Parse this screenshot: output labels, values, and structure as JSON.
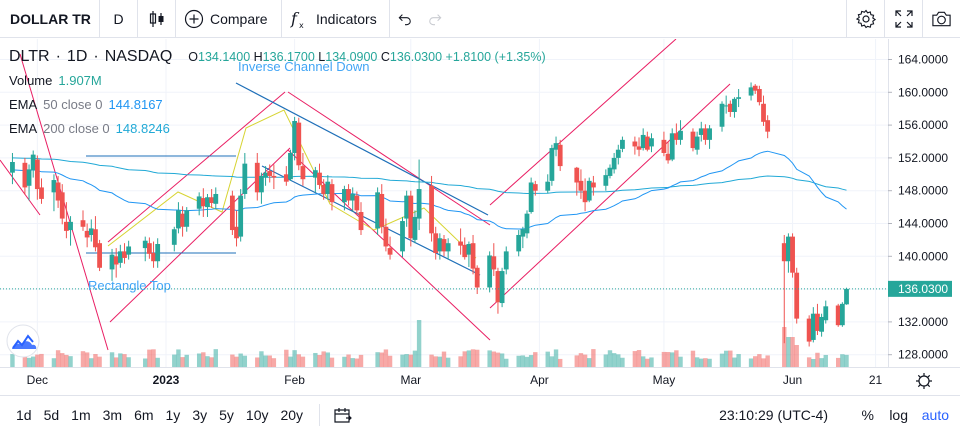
{
  "toolbar": {
    "symbol": "DOLLAR TR",
    "interval": "D",
    "compare_label": "Compare",
    "indicators_label": "Indicators",
    "chart_type_icon": "candles-icon",
    "indicators_icon": "fx-icon"
  },
  "legend": {
    "ticker": "DLTR",
    "interval": "1D",
    "exchange": "NASDAQ",
    "ohlc": {
      "o_label": "O",
      "o": "134.1400",
      "h_label": "H",
      "h": "136.1700",
      "l_label": "L",
      "l": "134.0900",
      "c_label": "C",
      "c": "136.0300",
      "change": "+1.8100 (+1.35%)"
    },
    "volume_label": "Volume",
    "volume_value": "1.907M",
    "ema50_label": "EMA",
    "ema50_params": "50 close 0",
    "ema50_value": "144.8167",
    "ema200_label": "EMA",
    "ema200_params": "200 close 0",
    "ema200_value": "148.8246"
  },
  "annotations": {
    "inverse_channel": "Inverse Channel Down",
    "rectangle_top": "Rectangle Top"
  },
  "price_axis": {
    "ticks": [
      "164.0000",
      "160.0000",
      "156.0000",
      "152.0000",
      "148.0000",
      "144.0000",
      "140.0000",
      "136.0000",
      "132.0000",
      "128.0000"
    ],
    "last_price": "136.0300"
  },
  "time_axis": {
    "labels": [
      "Dec",
      "2023",
      "Feb",
      "Mar",
      "Apr",
      "May",
      "Jun",
      "21"
    ]
  },
  "bottom": {
    "ranges": [
      "1d",
      "5d",
      "1m",
      "3m",
      "6m",
      "1y",
      "3y",
      "5y",
      "10y",
      "20y"
    ],
    "clock": "23:10:29 (UTC-4)",
    "percent": "%",
    "log": "log",
    "auto": "auto"
  },
  "colors": {
    "up": "#26a69a",
    "down": "#ef5350",
    "ema50": "#2196f3",
    "ema200": "#21a9d6",
    "drawing_pink": "#e91e63",
    "drawing_blue": "#1e6fb8",
    "drawing_yellow": "#d7d433",
    "accent": "#2962ff"
  },
  "chart_data": {
    "type": "candlestick",
    "ylim": [
      126.5,
      166.5
    ],
    "y_ticks": [
      164,
      160,
      156,
      152,
      148,
      144,
      140,
      136,
      132,
      128
    ],
    "last_price": 136.03,
    "candles": [
      {
        "date": "2022-11-25",
        "o": 150.2,
        "h": 152.6,
        "l": 148.8,
        "c": 151.5
      },
      {
        "date": "2022-11-28",
        "o": 151.4,
        "h": 152.0,
        "l": 147.5,
        "c": 148.4
      },
      {
        "date": "2022-11-29",
        "o": 148.6,
        "h": 151.2,
        "l": 146.8,
        "c": 150.6
      },
      {
        "date": "2022-11-30",
        "o": 150.5,
        "h": 152.9,
        "l": 149.6,
        "c": 152.4
      },
      {
        "date": "2022-12-01",
        "o": 151.8,
        "h": 152.3,
        "l": 146.9,
        "c": 148.2
      },
      {
        "date": "2022-12-02",
        "o": 148.4,
        "h": 149.5,
        "l": 146.4,
        "c": 147.0
      },
      {
        "date": "2022-12-05",
        "o": 147.8,
        "h": 150.0,
        "l": 145.5,
        "c": 149.3
      },
      {
        "date": "2022-12-06",
        "o": 149.0,
        "h": 149.8,
        "l": 145.9,
        "c": 146.8
      },
      {
        "date": "2022-12-07",
        "o": 147.8,
        "h": 148.8,
        "l": 143.9,
        "c": 144.6
      },
      {
        "date": "2022-12-08",
        "o": 144.2,
        "h": 146.6,
        "l": 142.2,
        "c": 143.1
      },
      {
        "date": "2022-12-09",
        "o": 143.2,
        "h": 144.9,
        "l": 141.3,
        "c": 144.2
      },
      {
        "date": "2022-12-12",
        "o": 144.4,
        "h": 145.6,
        "l": 143.1,
        "c": 143.6
      },
      {
        "date": "2022-12-13",
        "o": 143.1,
        "h": 144.0,
        "l": 141.1,
        "c": 142.3
      },
      {
        "date": "2022-12-14",
        "o": 142.6,
        "h": 144.5,
        "l": 141.8,
        "c": 143.4
      },
      {
        "date": "2022-12-15",
        "o": 143.3,
        "h": 144.9,
        "l": 140.6,
        "c": 141.1
      },
      {
        "date": "2022-12-16",
        "o": 141.6,
        "h": 142.0,
        "l": 138.2,
        "c": 138.6
      },
      {
        "date": "2022-12-19",
        "o": 138.4,
        "h": 140.9,
        "l": 137.0,
        "c": 140.2
      },
      {
        "date": "2022-12-20",
        "o": 140.0,
        "h": 141.0,
        "l": 137.4,
        "c": 139.0
      },
      {
        "date": "2022-12-21",
        "o": 139.2,
        "h": 141.4,
        "l": 138.6,
        "c": 140.6
      },
      {
        "date": "2022-12-22",
        "o": 140.6,
        "h": 141.6,
        "l": 139.1,
        "c": 139.8
      },
      {
        "date": "2022-12-23",
        "o": 140.2,
        "h": 141.9,
        "l": 139.6,
        "c": 141.2
      },
      {
        "date": "2022-12-27",
        "o": 141.0,
        "h": 142.4,
        "l": 139.4,
        "c": 141.9
      },
      {
        "date": "2022-12-28",
        "o": 141.6,
        "h": 142.3,
        "l": 139.7,
        "c": 140.3
      },
      {
        "date": "2022-12-29",
        "o": 140.4,
        "h": 141.8,
        "l": 138.6,
        "c": 139.4
      },
      {
        "date": "2022-12-30",
        "o": 139.4,
        "h": 142.2,
        "l": 138.6,
        "c": 141.5
      },
      {
        "date": "2023-01-03",
        "o": 141.4,
        "h": 143.6,
        "l": 140.6,
        "c": 143.3
      },
      {
        "date": "2023-01-04",
        "o": 143.4,
        "h": 146.6,
        "l": 142.8,
        "c": 145.6
      },
      {
        "date": "2023-01-05",
        "o": 145.2,
        "h": 146.1,
        "l": 142.4,
        "c": 143.6
      },
      {
        "date": "2023-01-06",
        "o": 143.6,
        "h": 146.0,
        "l": 143.0,
        "c": 145.6
      },
      {
        "date": "2023-01-09",
        "o": 145.8,
        "h": 147.8,
        "l": 145.0,
        "c": 147.3
      },
      {
        "date": "2023-01-10",
        "o": 147.1,
        "h": 148.3,
        "l": 144.8,
        "c": 146.1
      },
      {
        "date": "2023-01-11",
        "o": 146.0,
        "h": 147.6,
        "l": 144.8,
        "c": 147.2
      },
      {
        "date": "2023-01-12",
        "o": 147.2,
        "h": 148.2,
        "l": 145.9,
        "c": 146.5
      },
      {
        "date": "2023-01-13",
        "o": 146.4,
        "h": 148.4,
        "l": 145.8,
        "c": 147.6
      },
      {
        "date": "2023-01-17",
        "o": 147.4,
        "h": 148.0,
        "l": 142.6,
        "c": 143.2
      },
      {
        "date": "2023-01-18",
        "o": 143.6,
        "h": 145.6,
        "l": 141.2,
        "c": 142.2
      },
      {
        "date": "2023-01-19",
        "o": 142.4,
        "h": 148.2,
        "l": 141.8,
        "c": 147.4
      },
      {
        "date": "2023-01-20",
        "o": 147.6,
        "h": 152.6,
        "l": 147.0,
        "c": 151.3
      },
      {
        "date": "2023-01-23",
        "o": 151.4,
        "h": 152.6,
        "l": 146.8,
        "c": 147.8
      },
      {
        "date": "2023-01-24",
        "o": 147.8,
        "h": 150.2,
        "l": 146.4,
        "c": 149.8
      },
      {
        "date": "2023-01-25",
        "o": 149.6,
        "h": 151.0,
        "l": 148.6,
        "c": 150.2
      },
      {
        "date": "2023-01-26",
        "o": 150.4,
        "h": 151.2,
        "l": 149.0,
        "c": 149.8
      },
      {
        "date": "2023-01-27",
        "o": 149.8,
        "h": 151.2,
        "l": 148.2,
        "c": 149.6
      },
      {
        "date": "2023-01-30",
        "o": 150.0,
        "h": 151.0,
        "l": 148.6,
        "c": 149.1
      },
      {
        "date": "2023-01-31",
        "o": 149.4,
        "h": 153.0,
        "l": 149.2,
        "c": 152.6
      },
      {
        "date": "2023-02-01",
        "o": 152.6,
        "h": 157.0,
        "l": 151.7,
        "c": 156.5
      },
      {
        "date": "2023-02-02",
        "o": 156.3,
        "h": 156.9,
        "l": 150.5,
        "c": 151.1
      },
      {
        "date": "2023-02-03",
        "o": 151.0,
        "h": 152.6,
        "l": 148.6,
        "c": 149.4
      },
      {
        "date": "2023-02-06",
        "o": 149.6,
        "h": 150.9,
        "l": 147.8,
        "c": 150.5
      },
      {
        "date": "2023-02-07",
        "o": 150.2,
        "h": 151.3,
        "l": 148.2,
        "c": 148.7
      },
      {
        "date": "2023-02-08",
        "o": 148.7,
        "h": 149.4,
        "l": 146.9,
        "c": 147.6
      },
      {
        "date": "2023-02-09",
        "o": 147.6,
        "h": 149.9,
        "l": 146.9,
        "c": 149.1
      },
      {
        "date": "2023-02-10",
        "o": 148.8,
        "h": 149.4,
        "l": 145.6,
        "c": 146.6
      },
      {
        "date": "2023-02-13",
        "o": 146.6,
        "h": 148.6,
        "l": 145.6,
        "c": 148.2
      },
      {
        "date": "2023-02-14",
        "o": 148.2,
        "h": 148.8,
        "l": 146.2,
        "c": 146.8
      },
      {
        "date": "2023-02-15",
        "o": 146.8,
        "h": 148.4,
        "l": 145.4,
        "c": 147.6
      },
      {
        "date": "2023-02-16",
        "o": 147.4,
        "h": 147.9,
        "l": 145.0,
        "c": 145.6
      },
      {
        "date": "2023-02-17",
        "o": 145.4,
        "h": 146.6,
        "l": 142.6,
        "c": 143.2
      },
      {
        "date": "2023-02-21",
        "o": 143.4,
        "h": 148.4,
        "l": 142.6,
        "c": 147.8
      },
      {
        "date": "2023-02-22",
        "o": 147.6,
        "h": 148.8,
        "l": 142.8,
        "c": 143.6
      },
      {
        "date": "2023-02-23",
        "o": 143.6,
        "h": 144.6,
        "l": 140.6,
        "c": 141.2
      },
      {
        "date": "2023-02-24",
        "o": 141.0,
        "h": 142.4,
        "l": 139.6,
        "c": 140.2
      },
      {
        "date": "2023-02-27",
        "o": 140.6,
        "h": 144.8,
        "l": 139.9,
        "c": 144.3
      },
      {
        "date": "2023-02-28",
        "o": 144.6,
        "h": 148.0,
        "l": 143.6,
        "c": 147.4
      },
      {
        "date": "2023-03-01",
        "o": 147.4,
        "h": 148.0,
        "l": 141.2,
        "c": 142.2
      },
      {
        "date": "2023-03-02",
        "o": 142.0,
        "h": 145.6,
        "l": 141.6,
        "c": 144.8
      },
      {
        "date": "2023-03-03",
        "o": 144.6,
        "h": 151.8,
        "l": 143.2,
        "c": 148.2
      },
      {
        "date": "2023-03-06",
        "o": 148.6,
        "h": 149.8,
        "l": 141.8,
        "c": 142.8
      },
      {
        "date": "2023-03-07",
        "o": 142.8,
        "h": 143.6,
        "l": 139.6,
        "c": 140.4
      },
      {
        "date": "2023-03-08",
        "o": 140.6,
        "h": 142.8,
        "l": 139.6,
        "c": 142.2
      },
      {
        "date": "2023-03-09",
        "o": 142.1,
        "h": 142.6,
        "l": 140.0,
        "c": 140.6
      },
      {
        "date": "2023-03-10",
        "o": 140.6,
        "h": 142.2,
        "l": 139.6,
        "c": 141.6
      },
      {
        "date": "2023-03-13",
        "o": 141.8,
        "h": 143.4,
        "l": 140.2,
        "c": 141.3
      },
      {
        "date": "2023-03-14",
        "o": 141.4,
        "h": 142.3,
        "l": 139.6,
        "c": 139.9
      },
      {
        "date": "2023-03-15",
        "o": 140.2,
        "h": 141.8,
        "l": 138.7,
        "c": 141.5
      },
      {
        "date": "2023-03-16",
        "o": 141.6,
        "h": 142.6,
        "l": 137.8,
        "c": 138.5
      },
      {
        "date": "2023-03-17",
        "o": 138.6,
        "h": 138.9,
        "l": 135.4,
        "c": 136.2
      },
      {
        "date": "2023-03-20",
        "o": 136.2,
        "h": 140.6,
        "l": 135.6,
        "c": 140.1
      },
      {
        "date": "2023-03-21",
        "o": 140.0,
        "h": 141.6,
        "l": 137.6,
        "c": 138.4
      },
      {
        "date": "2023-03-22",
        "o": 138.2,
        "h": 138.6,
        "l": 133.0,
        "c": 134.4
      },
      {
        "date": "2023-03-23",
        "o": 134.3,
        "h": 138.6,
        "l": 133.8,
        "c": 138.2
      },
      {
        "date": "2023-03-24",
        "o": 138.4,
        "h": 141.2,
        "l": 137.8,
        "c": 140.6
      },
      {
        "date": "2023-03-27",
        "o": 140.6,
        "h": 143.2,
        "l": 140.0,
        "c": 142.6
      },
      {
        "date": "2023-03-28",
        "o": 142.4,
        "h": 143.6,
        "l": 141.0,
        "c": 143.3
      },
      {
        "date": "2023-03-29",
        "o": 142.8,
        "h": 145.6,
        "l": 142.2,
        "c": 145.2
      },
      {
        "date": "2023-03-30",
        "o": 145.4,
        "h": 149.6,
        "l": 145.2,
        "c": 149.0
      },
      {
        "date": "2023-03-31",
        "o": 148.8,
        "h": 149.2,
        "l": 147.4,
        "c": 148.0
      },
      {
        "date": "2023-04-03",
        "o": 148.0,
        "h": 150.0,
        "l": 147.7,
        "c": 149.1
      },
      {
        "date": "2023-04-04",
        "o": 149.2,
        "h": 153.6,
        "l": 148.6,
        "c": 153.2
      },
      {
        "date": "2023-04-05",
        "o": 153.0,
        "h": 154.6,
        "l": 152.2,
        "c": 153.8
      },
      {
        "date": "2023-04-06",
        "o": 153.6,
        "h": 154.2,
        "l": 150.4,
        "c": 151.0
      },
      {
        "date": "2023-04-10",
        "o": 150.8,
        "h": 150.9,
        "l": 147.4,
        "c": 149.0
      },
      {
        "date": "2023-04-11",
        "o": 149.2,
        "h": 150.6,
        "l": 147.0,
        "c": 148.0
      },
      {
        "date": "2023-04-12",
        "o": 148.0,
        "h": 149.5,
        "l": 145.5,
        "c": 146.6
      },
      {
        "date": "2023-04-13",
        "o": 146.8,
        "h": 149.6,
        "l": 146.6,
        "c": 149.2
      },
      {
        "date": "2023-04-14",
        "o": 149.0,
        "h": 149.8,
        "l": 147.4,
        "c": 148.4
      },
      {
        "date": "2023-04-17",
        "o": 148.6,
        "h": 150.6,
        "l": 148.0,
        "c": 149.9
      },
      {
        "date": "2023-04-18",
        "o": 149.8,
        "h": 151.2,
        "l": 149.5,
        "c": 150.8
      },
      {
        "date": "2023-04-19",
        "o": 150.6,
        "h": 152.6,
        "l": 150.1,
        "c": 152.0
      },
      {
        "date": "2023-04-20",
        "o": 152.0,
        "h": 153.6,
        "l": 151.2,
        "c": 153.0
      },
      {
        "date": "2023-04-21",
        "o": 153.1,
        "h": 154.6,
        "l": 152.7,
        "c": 154.2
      },
      {
        "date": "2023-04-24",
        "o": 154.0,
        "h": 154.6,
        "l": 152.4,
        "c": 153.4
      },
      {
        "date": "2023-04-25",
        "o": 153.4,
        "h": 154.5,
        "l": 152.2,
        "c": 153.0
      },
      {
        "date": "2023-04-26",
        "o": 153.2,
        "h": 155.6,
        "l": 152.9,
        "c": 154.8
      },
      {
        "date": "2023-04-27",
        "o": 154.6,
        "h": 155.2,
        "l": 152.8,
        "c": 153.0
      },
      {
        "date": "2023-04-28",
        "o": 153.4,
        "h": 155.0,
        "l": 152.7,
        "c": 154.4
      },
      {
        "date": "2023-05-01",
        "o": 154.2,
        "h": 155.2,
        "l": 152.2,
        "c": 152.6
      },
      {
        "date": "2023-05-02",
        "o": 152.5,
        "h": 154.0,
        "l": 151.3,
        "c": 151.7
      },
      {
        "date": "2023-05-03",
        "o": 151.8,
        "h": 155.6,
        "l": 151.6,
        "c": 155.0
      },
      {
        "date": "2023-05-04",
        "o": 155.0,
        "h": 156.2,
        "l": 153.6,
        "c": 154.2
      },
      {
        "date": "2023-05-05",
        "o": 154.2,
        "h": 156.6,
        "l": 153.6,
        "c": 155.3
      },
      {
        "date": "2023-05-08",
        "o": 155.2,
        "h": 155.6,
        "l": 152.8,
        "c": 153.2
      },
      {
        "date": "2023-05-09",
        "o": 153.0,
        "h": 155.2,
        "l": 152.4,
        "c": 154.6
      },
      {
        "date": "2023-05-10",
        "o": 154.8,
        "h": 156.4,
        "l": 154.0,
        "c": 155.6
      },
      {
        "date": "2023-05-11",
        "o": 155.6,
        "h": 156.1,
        "l": 153.6,
        "c": 154.2
      },
      {
        "date": "2023-05-12",
        "o": 154.2,
        "h": 156.0,
        "l": 153.1,
        "c": 155.6
      },
      {
        "date": "2023-05-15",
        "o": 155.8,
        "h": 158.9,
        "l": 155.2,
        "c": 158.6
      },
      {
        "date": "2023-05-16",
        "o": 158.4,
        "h": 159.6,
        "l": 157.4,
        "c": 158.4
      },
      {
        "date": "2023-05-17",
        "o": 158.6,
        "h": 159.0,
        "l": 157.0,
        "c": 157.6
      },
      {
        "date": "2023-05-18",
        "o": 157.6,
        "h": 159.4,
        "l": 156.9,
        "c": 159.2
      },
      {
        "date": "2023-05-19",
        "o": 159.2,
        "h": 160.4,
        "l": 158.2,
        "c": 159.4
      },
      {
        "date": "2023-05-22",
        "o": 159.6,
        "h": 161.2,
        "l": 159.0,
        "c": 160.6
      },
      {
        "date": "2023-05-23",
        "o": 160.8,
        "h": 161.0,
        "l": 159.8,
        "c": 160.2
      },
      {
        "date": "2023-05-24",
        "o": 160.4,
        "h": 160.8,
        "l": 158.4,
        "c": 158.8
      },
      {
        "date": "2023-05-25",
        "o": 158.6,
        "h": 159.6,
        "l": 155.9,
        "c": 156.4
      },
      {
        "date": "2023-05-26",
        "o": 156.6,
        "h": 157.2,
        "l": 154.4,
        "c": 155.2
      },
      {
        "date": "2023-05-30",
        "o": 141.6,
        "h": 142.6,
        "l": 129.4,
        "c": 139.4
      },
      {
        "date": "2023-05-31",
        "o": 139.4,
        "h": 142.8,
        "l": 138.0,
        "c": 142.4
      },
      {
        "date": "2023-06-01",
        "o": 142.4,
        "h": 142.8,
        "l": 137.4,
        "c": 138.0
      },
      {
        "date": "2023-06-02",
        "o": 138.0,
        "h": 138.6,
        "l": 131.8,
        "c": 132.4
      },
      {
        "date": "2023-06-05",
        "o": 132.4,
        "h": 132.8,
        "l": 129.0,
        "c": 129.6
      },
      {
        "date": "2023-06-06",
        "o": 129.8,
        "h": 133.8,
        "l": 129.5,
        "c": 133.0
      },
      {
        "date": "2023-06-07",
        "o": 133.0,
        "h": 134.2,
        "l": 130.4,
        "c": 130.9
      },
      {
        "date": "2023-06-08",
        "o": 130.8,
        "h": 133.0,
        "l": 130.2,
        "c": 132.6
      },
      {
        "date": "2023-06-09",
        "o": 132.2,
        "h": 134.6,
        "l": 131.8,
        "c": 133.9
      },
      {
        "date": "2023-06-12",
        "o": 134.0,
        "h": 134.2,
        "l": 131.4,
        "c": 131.6
      },
      {
        "date": "2023-06-13",
        "o": 131.6,
        "h": 134.4,
        "l": 131.4,
        "c": 134.2
      },
      {
        "date": "2023-06-14",
        "o": 134.14,
        "h": 136.17,
        "l": 134.09,
        "c": 136.03
      }
    ]
  }
}
